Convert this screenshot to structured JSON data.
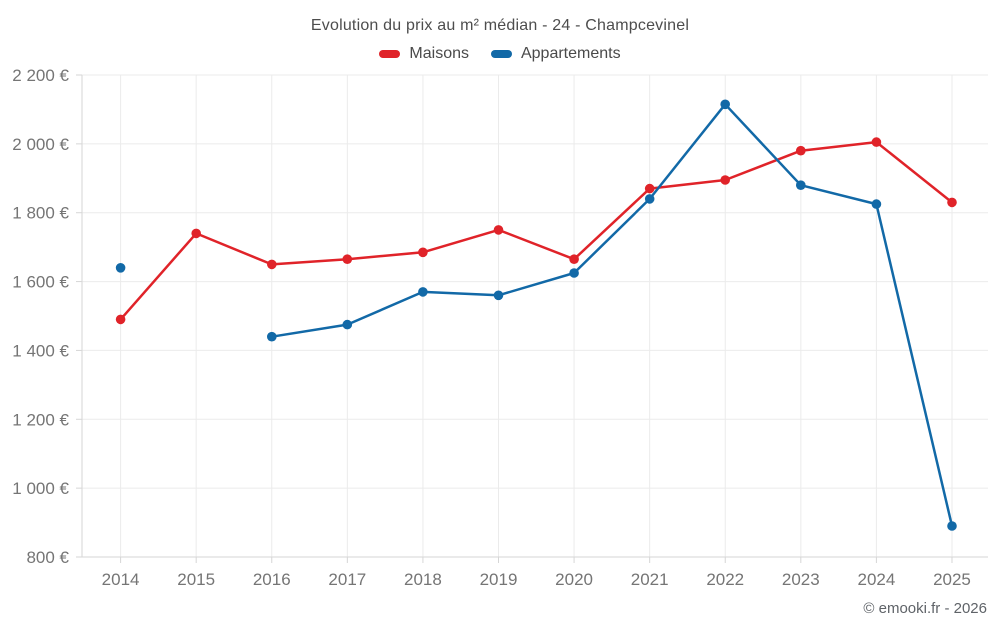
{
  "chart_data": {
    "type": "line",
    "title": "Evolution du prix au m² médian - 24 - Champcevinel",
    "x": [
      "2014",
      "2015",
      "2016",
      "2017",
      "2018",
      "2019",
      "2020",
      "2021",
      "2022",
      "2023",
      "2024",
      "2025"
    ],
    "series": [
      {
        "name": "Maisons",
        "color": "#e02329",
        "values": [
          1490,
          1740,
          1650,
          1665,
          1685,
          1750,
          1665,
          1870,
          1895,
          1980,
          2005,
          1830
        ]
      },
      {
        "name": "Appartements",
        "color": "#1269a7",
        "values": [
          1640,
          null,
          1440,
          1475,
          1570,
          1560,
          1625,
          1840,
          2115,
          1880,
          1825,
          890
        ]
      }
    ],
    "xlabel": "",
    "ylabel": "",
    "ylim": [
      800,
      2200
    ],
    "ytick_values": [
      800,
      1000,
      1200,
      1400,
      1600,
      1800,
      2000,
      2200
    ],
    "ytick_labels": [
      "800 €",
      "1 000 €",
      "1 200 €",
      "1 400 €",
      "1 600 €",
      "1 800 €",
      "2 000 €",
      "2 200 €"
    ],
    "grid": true,
    "legend_position": "top"
  },
  "footer": {
    "credit": "© emooki.fr - 2026"
  },
  "colors": {
    "grid": "#ebebeb",
    "axis": "#d6d6d6",
    "tick_label": "#757575",
    "title_text": "#4d4d4d",
    "legend_text": "#4a4a4a",
    "footer_text": "#5f6368",
    "background": "#ffffff"
  }
}
